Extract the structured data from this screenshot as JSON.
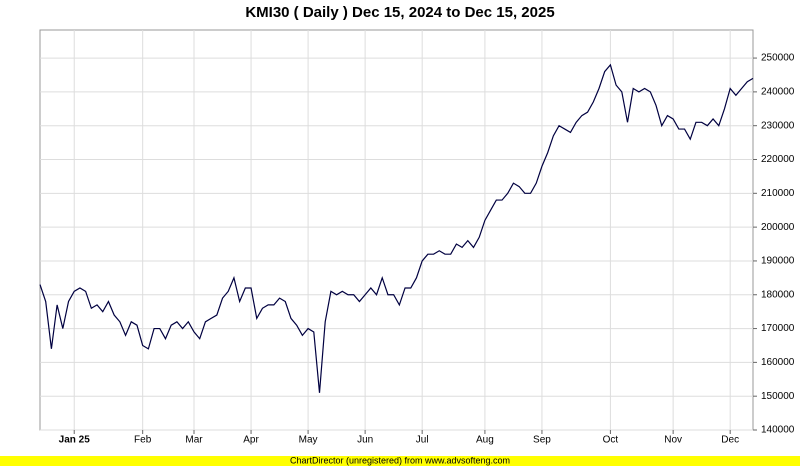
{
  "chart_data": {
    "type": "line",
    "title": "KMI30 ( Daily ) Dec 15, 2024 to Dec 15, 2025",
    "footer": "ChartDirector (unregistered) from www.advsofteng.com",
    "categories": [
      null,
      null,
      null,
      null,
      null,
      null,
      "Jan 25",
      null,
      null,
      null,
      null,
      null,
      null,
      null,
      null,
      null,
      null,
      null,
      "Feb",
      null,
      null,
      null,
      null,
      null,
      null,
      null,
      null,
      "Mar",
      null,
      null,
      null,
      null,
      null,
      null,
      null,
      null,
      null,
      "Apr",
      null,
      null,
      null,
      null,
      null,
      null,
      null,
      null,
      null,
      "May",
      null,
      null,
      null,
      null,
      null,
      null,
      null,
      null,
      null,
      "Jun",
      null,
      null,
      null,
      null,
      null,
      null,
      null,
      null,
      null,
      "Jul",
      null,
      null,
      null,
      null,
      null,
      null,
      null,
      null,
      null,
      null,
      "Aug",
      null,
      null,
      null,
      null,
      null,
      null,
      null,
      null,
      null,
      "Sep",
      null,
      null,
      null,
      null,
      null,
      null,
      null,
      null,
      null,
      null,
      null,
      "Oct",
      null,
      null,
      null,
      null,
      null,
      null,
      null,
      null,
      null,
      null,
      "Nov",
      null,
      null,
      null,
      null,
      null,
      null,
      null,
      null,
      null,
      "Dec",
      null,
      null,
      null,
      null
    ],
    "series": [
      {
        "name": "KMI30",
        "color": "#000040",
        "values": [
          183000,
          178000,
          164000,
          177000,
          170000,
          178000,
          181000,
          182000,
          181000,
          176000,
          177000,
          175000,
          178000,
          174000,
          172000,
          168000,
          172000,
          171000,
          165000,
          164000,
          170000,
          170000,
          167000,
          171000,
          172000,
          170000,
          172000,
          169000,
          167000,
          172000,
          173000,
          174000,
          179000,
          181000,
          185000,
          178000,
          182000,
          182000,
          173000,
          176000,
          177000,
          177000,
          179000,
          178000,
          173000,
          171000,
          168000,
          170000,
          169000,
          151000,
          172000,
          181000,
          180000,
          181000,
          180000,
          180000,
          178000,
          180000,
          182000,
          180000,
          185000,
          180000,
          180000,
          177000,
          182000,
          182000,
          185000,
          190000,
          192000,
          192000,
          193000,
          192000,
          192000,
          195000,
          194000,
          196000,
          194000,
          197000,
          202000,
          205000,
          208000,
          208000,
          210000,
          213000,
          212000,
          210000,
          210000,
          213000,
          218000,
          222000,
          227000,
          230000,
          229000,
          228000,
          231000,
          233000,
          234000,
          237000,
          241000,
          246000,
          248000,
          242000,
          240000,
          231000,
          241000,
          240000,
          241000,
          240000,
          236000,
          230000,
          233000,
          232000,
          229000,
          229000,
          226000,
          231000,
          231000,
          230000,
          232000,
          230000,
          235000,
          241000,
          239000,
          241000,
          243000,
          244000
        ]
      }
    ],
    "ylim": [
      140000,
      258300
    ],
    "yticks": [
      140000,
      150000,
      160000,
      170000,
      180000,
      190000,
      200000,
      210000,
      220000,
      230000,
      240000,
      250000
    ],
    "grid": true
  }
}
